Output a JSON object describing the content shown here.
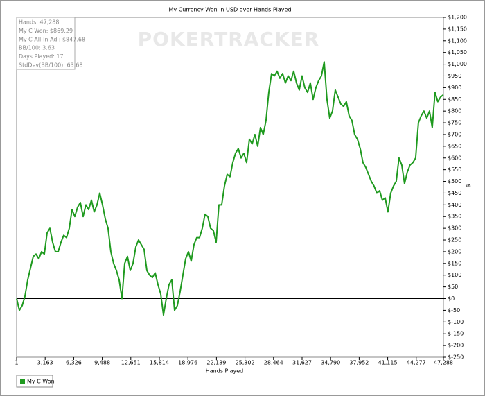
{
  "chart_data": {
    "type": "line",
    "title": "My Currency Won in USD over Hands Played",
    "x_label": "Hands Played",
    "y_label": "$",
    "watermark": "POKERTRACKER",
    "stats": [
      "Hands: 47,288",
      "My C Won: $869.29",
      "My C All-In Adj: $847.68",
      "BB/100: 3.63",
      "Days Played: 17",
      "StdDev(BB/100): 63.68"
    ],
    "legend": "bottom-left",
    "y_axis_side": "right",
    "xlim": [
      1,
      47288
    ],
    "ylim": [
      -250,
      1200
    ],
    "xticks": [
      1,
      {
        "value": 3163,
        "label": "3,163"
      },
      {
        "value": 6326,
        "label": "6,326"
      },
      {
        "value": 9488,
        "label": "9,488"
      },
      {
        "value": 12651,
        "label": "12,651"
      },
      {
        "value": 15814,
        "label": "15,814"
      },
      {
        "value": 18976,
        "label": "18,976"
      },
      {
        "value": 22139,
        "label": "22,139"
      },
      {
        "value": 25302,
        "label": "25,302"
      },
      {
        "value": 28464,
        "label": "28,464"
      },
      {
        "value": 31627,
        "label": "31,627"
      },
      {
        "value": 34790,
        "label": "34,790"
      },
      {
        "value": 37952,
        "label": "37,952"
      },
      {
        "value": 41115,
        "label": "41,115"
      },
      {
        "value": 44277,
        "label": "44,277"
      },
      {
        "value": 47288,
        "label": "47,288"
      }
    ],
    "yticks": [
      {
        "value": -250,
        "label": "$-250"
      },
      {
        "value": -200,
        "label": "$-200"
      },
      {
        "value": -150,
        "label": "$-150"
      },
      {
        "value": -100,
        "label": "$-100"
      },
      {
        "value": -50,
        "label": "$-50"
      },
      {
        "value": 0,
        "label": "$0"
      },
      {
        "value": 50,
        "label": "$50"
      },
      {
        "value": 100,
        "label": "$100"
      },
      {
        "value": 150,
        "label": "$150"
      },
      {
        "value": 200,
        "label": "$200"
      },
      {
        "value": 250,
        "label": "$250"
      },
      {
        "value": 300,
        "label": "$300"
      },
      {
        "value": 350,
        "label": "$350"
      },
      {
        "value": 400,
        "label": "$400"
      },
      {
        "value": 450,
        "label": "$450"
      },
      {
        "value": 500,
        "label": "$500"
      },
      {
        "value": 550,
        "label": "$550"
      },
      {
        "value": 600,
        "label": "$600"
      },
      {
        "value": 650,
        "label": "$650"
      },
      {
        "value": 700,
        "label": "$700"
      },
      {
        "value": 750,
        "label": "$750"
      },
      {
        "value": 800,
        "label": "$800"
      },
      {
        "value": 850,
        "label": "$850"
      },
      {
        "value": 900,
        "label": "$900"
      },
      {
        "value": 950,
        "label": "$950"
      },
      {
        "value": 1000,
        "label": "$1,000"
      },
      {
        "value": 1050,
        "label": "$1,050"
      },
      {
        "value": 1100,
        "label": "$1,100"
      },
      {
        "value": 1150,
        "label": "$1,150"
      },
      {
        "value": 1200,
        "label": "$1,200"
      }
    ],
    "x": [
      1,
      308,
      615,
      922,
      1229,
      1536,
      1843,
      2150,
      2457,
      2764,
      3071,
      3378,
      3685,
      3992,
      4299,
      4606,
      4913,
      5220,
      5527,
      5834,
      6141,
      6448,
      6755,
      7062,
      7369,
      7676,
      7983,
      8290,
      8597,
      8904,
      9211,
      9518,
      9825,
      10132,
      10439,
      10746,
      11053,
      11360,
      11667,
      11974,
      12281,
      12588,
      12895,
      13202,
      13509,
      13816,
      14123,
      14430,
      14737,
      15044,
      15351,
      15658,
      15965,
      16272,
      16579,
      16886,
      17193,
      17500,
      17807,
      18114,
      18421,
      18728,
      19035,
      19342,
      19649,
      19956,
      20263,
      20570,
      20877,
      21184,
      21491,
      21798,
      22105,
      22412,
      22719,
      23026,
      23333,
      23640,
      23947,
      24254,
      24561,
      24868,
      25175,
      25482,
      25789,
      26096,
      26403,
      26710,
      27017,
      27324,
      27631,
      27938,
      28245,
      28552,
      28859,
      29166,
      29473,
      29780,
      30087,
      30394,
      30701,
      31008,
      31315,
      31622,
      31929,
      32236,
      32543,
      32850,
      33157,
      33464,
      33771,
      34078,
      34385,
      34692,
      34999,
      35306,
      35613,
      35920,
      36227,
      36534,
      36841,
      37148,
      37455,
      37762,
      38069,
      38376,
      38683,
      38990,
      39297,
      39604,
      39911,
      40218,
      40525,
      40832,
      41139,
      41446,
      41753,
      42060,
      42367,
      42674,
      42981,
      43288,
      43595,
      43902,
      44209,
      44516,
      44823,
      45130,
      45437,
      45744,
      46051,
      46358,
      46665,
      46972,
      47288
    ],
    "series": [
      {
        "name": "My C Won",
        "color": "#1f9a1f",
        "values": [
          0,
          -50,
          -30,
          10,
          80,
          130,
          180,
          190,
          170,
          200,
          190,
          280,
          300,
          240,
          200,
          200,
          240,
          270,
          260,
          300,
          380,
          350,
          390,
          410,
          350,
          400,
          380,
          420,
          370,
          400,
          450,
          400,
          340,
          300,
          200,
          150,
          120,
          80,
          0,
          150,
          180,
          120,
          150,
          220,
          250,
          230,
          210,
          120,
          100,
          90,
          110,
          60,
          20,
          -70,
          0,
          60,
          80,
          -50,
          -30,
          30,
          100,
          170,
          200,
          160,
          230,
          260,
          260,
          300,
          360,
          350,
          300,
          290,
          240,
          400,
          400,
          480,
          530,
          520,
          580,
          620,
          640,
          600,
          620,
          580,
          680,
          660,
          700,
          650,
          730,
          700,
          760,
          880,
          960,
          950,
          970,
          940,
          960,
          920,
          950,
          930,
          970,
          920,
          890,
          950,
          900,
          880,
          920,
          850,
          900,
          930,
          950,
          1010,
          850,
          770,
          800,
          890,
          860,
          830,
          820,
          840,
          780,
          760,
          700,
          680,
          640,
          580,
          560,
          530,
          500,
          480,
          450,
          460,
          420,
          430,
          370,
          450,
          480,
          500,
          600,
          570,
          490,
          540,
          570,
          580,
          600,
          750,
          780,
          800,
          770,
          800,
          730,
          880,
          840,
          860,
          870
        ]
      }
    ]
  }
}
